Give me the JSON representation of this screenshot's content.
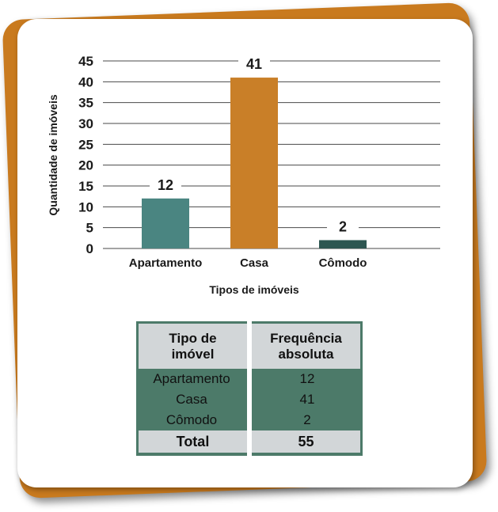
{
  "colors": {
    "back_card": "#c97a1e",
    "bar_apartamento": "#4a8581",
    "bar_casa": "#c97f28",
    "bar_comodo": "#2d5651",
    "table_bg": "#4c7a69",
    "table_header": "#d2d6d8"
  },
  "chart_data": {
    "type": "bar",
    "categories": [
      "Apartamento",
      "Casa",
      "Cômodo"
    ],
    "values": [
      12,
      41,
      2
    ],
    "title": "",
    "xlabel": "Tipos de imóveis",
    "ylabel": "Quantidade de imóveis",
    "ylim": [
      0,
      45
    ],
    "yticks": [
      0,
      5,
      10,
      15,
      20,
      25,
      30,
      35,
      40,
      45
    ],
    "grid": true,
    "data_labels": true
  },
  "table": {
    "headers": [
      "Tipo de imóvel",
      "Frequência absoluta"
    ],
    "header_lines": [
      [
        "Tipo de",
        "imóvel"
      ],
      [
        "Frequência",
        "absoluta"
      ]
    ],
    "rows": [
      [
        "Apartamento",
        "12"
      ],
      [
        "Casa",
        "41"
      ],
      [
        "Cômodo",
        "2"
      ]
    ],
    "total": [
      "Total",
      "55"
    ]
  }
}
